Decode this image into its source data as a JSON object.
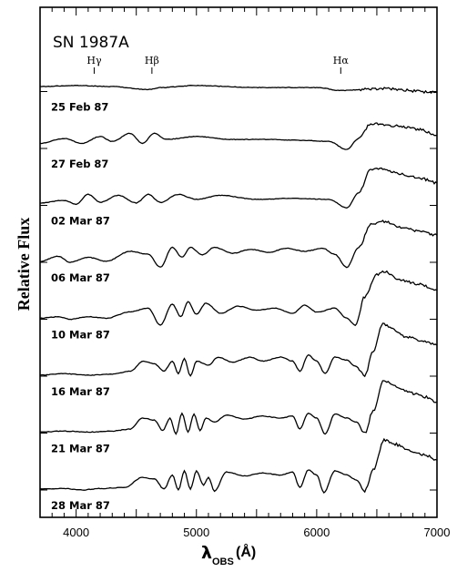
{
  "chart_data": {
    "type": "line",
    "title": "SN 1987A",
    "ylabel": "Relative Flux",
    "xlabel": {
      "symbol": "λ",
      "subscript": "OBS",
      "unit": "(Å)"
    },
    "xlim": [
      3700,
      7000
    ],
    "xticks": [
      4000,
      5000,
      6000,
      7000
    ],
    "xtick_labels": [
      "4000",
      "5000",
      "6000",
      "7000"
    ],
    "line_markers": [
      {
        "label": "Hγ",
        "x": 4150
      },
      {
        "label": "Hβ",
        "x": 4630
      },
      {
        "label": "Hα",
        "x": 6200
      }
    ],
    "series": [
      {
        "name": "25 Feb 87",
        "offset": 7,
        "x_start": 3700,
        "points": [
          [
            3700,
            0.1
          ],
          [
            4000,
            0.12
          ],
          [
            4300,
            0.1
          ],
          [
            4600,
            0.04
          ],
          [
            4700,
            0.08
          ],
          [
            5000,
            0.12
          ],
          [
            5500,
            0.08
          ],
          [
            6000,
            0.08
          ],
          [
            6200,
            0.02
          ],
          [
            6450,
            0.05
          ],
          [
            6550,
            0.06
          ],
          [
            7000,
            -0.02
          ]
        ]
      },
      {
        "name": "27 Feb 87",
        "offset": 6,
        "x_start": 3700,
        "points": [
          [
            3700,
            0.1
          ],
          [
            3900,
            0.2
          ],
          [
            4050,
            0.1
          ],
          [
            4200,
            0.24
          ],
          [
            4300,
            0.14
          ],
          [
            4450,
            0.3
          ],
          [
            4550,
            0.1
          ],
          [
            4650,
            0.3
          ],
          [
            4750,
            0.18
          ],
          [
            5000,
            0.24
          ],
          [
            5300,
            0.18
          ],
          [
            5600,
            0.18
          ],
          [
            5900,
            0.16
          ],
          [
            6100,
            0.14
          ],
          [
            6250,
            -0.02
          ],
          [
            6350,
            0.2
          ],
          [
            6450,
            0.5
          ],
          [
            6550,
            0.48
          ],
          [
            6700,
            0.44
          ],
          [
            6850,
            0.38
          ],
          [
            7000,
            0.26
          ]
        ]
      },
      {
        "name": "02 Mar 87",
        "offset": 5,
        "x_start": 3700,
        "points": [
          [
            3700,
            0.05
          ],
          [
            3900,
            0.1
          ],
          [
            4000,
            0.02
          ],
          [
            4100,
            0.22
          ],
          [
            4200,
            0.06
          ],
          [
            4350,
            0.2
          ],
          [
            4500,
            0.05
          ],
          [
            4600,
            0.22
          ],
          [
            4700,
            0.06
          ],
          [
            4850,
            0.22
          ],
          [
            5000,
            0.12
          ],
          [
            5200,
            0.2
          ],
          [
            5500,
            0.12
          ],
          [
            5800,
            0.14
          ],
          [
            6100,
            0.12
          ],
          [
            6250,
            -0.05
          ],
          [
            6350,
            0.25
          ],
          [
            6450,
            0.72
          ],
          [
            6550,
            0.74
          ],
          [
            6700,
            0.62
          ],
          [
            6850,
            0.55
          ],
          [
            7000,
            0.45
          ]
        ]
      },
      {
        "name": "06 Mar 87",
        "offset": 4,
        "x_start": 3700,
        "points": [
          [
            3700,
            0.02
          ],
          [
            3850,
            0.12
          ],
          [
            3950,
            0.0
          ],
          [
            4100,
            0.1
          ],
          [
            4250,
            0.02
          ],
          [
            4450,
            0.22
          ],
          [
            4600,
            0.16
          ],
          [
            4700,
            -0.1
          ],
          [
            4800,
            0.3
          ],
          [
            4880,
            0.1
          ],
          [
            4950,
            0.3
          ],
          [
            5050,
            0.15
          ],
          [
            5150,
            0.3
          ],
          [
            5300,
            0.18
          ],
          [
            5450,
            0.26
          ],
          [
            5600,
            0.2
          ],
          [
            5750,
            0.28
          ],
          [
            5900,
            0.22
          ],
          [
            6050,
            0.28
          ],
          [
            6150,
            0.16
          ],
          [
            6250,
            -0.1
          ],
          [
            6350,
            0.3
          ],
          [
            6450,
            0.75
          ],
          [
            6550,
            0.82
          ],
          [
            6700,
            0.7
          ],
          [
            6850,
            0.62
          ],
          [
            7000,
            0.54
          ]
        ]
      },
      {
        "name": "10 Mar 87",
        "offset": 3,
        "x_start": 3700,
        "points": [
          [
            3700,
            0.02
          ],
          [
            3850,
            0.05
          ],
          [
            3950,
            0.0
          ],
          [
            4100,
            0.05
          ],
          [
            4250,
            0.02
          ],
          [
            4450,
            0.15
          ],
          [
            4600,
            0.22
          ],
          [
            4700,
            -0.12
          ],
          [
            4800,
            0.3
          ],
          [
            4870,
            0.05
          ],
          [
            4930,
            0.35
          ],
          [
            5000,
            0.1
          ],
          [
            5080,
            0.32
          ],
          [
            5200,
            0.12
          ],
          [
            5350,
            0.26
          ],
          [
            5500,
            0.18
          ],
          [
            5650,
            0.22
          ],
          [
            5800,
            0.12
          ],
          [
            5900,
            0.28
          ],
          [
            6000,
            0.14
          ],
          [
            6150,
            0.22
          ],
          [
            6250,
            0.02
          ],
          [
            6320,
            -0.12
          ],
          [
            6400,
            0.45
          ],
          [
            6500,
            0.9
          ],
          [
            6560,
            0.95
          ],
          [
            6700,
            0.78
          ],
          [
            6850,
            0.7
          ],
          [
            7000,
            0.58
          ]
        ]
      },
      {
        "name": "16 Mar 87",
        "offset": 2,
        "x_start": 3700,
        "points": [
          [
            3700,
            0.02
          ],
          [
            3900,
            0.05
          ],
          [
            4100,
            0.02
          ],
          [
            4300,
            0.04
          ],
          [
            4450,
            0.1
          ],
          [
            4560,
            0.3
          ],
          [
            4650,
            0.25
          ],
          [
            4730,
            0.1
          ],
          [
            4800,
            0.3
          ],
          [
            4850,
            0.05
          ],
          [
            4900,
            0.35
          ],
          [
            4950,
            0.0
          ],
          [
            5000,
            0.3
          ],
          [
            5100,
            0.22
          ],
          [
            5180,
            0.38
          ],
          [
            5300,
            0.28
          ],
          [
            5450,
            0.38
          ],
          [
            5550,
            0.3
          ],
          [
            5700,
            0.38
          ],
          [
            5800,
            0.3
          ],
          [
            5860,
            0.1
          ],
          [
            5930,
            0.42
          ],
          [
            6000,
            0.3
          ],
          [
            6070,
            0.05
          ],
          [
            6150,
            0.38
          ],
          [
            6250,
            0.32
          ],
          [
            6320,
            0.2
          ],
          [
            6400,
            0.02
          ],
          [
            6470,
            0.5
          ],
          [
            6550,
            1.05
          ],
          [
            6620,
            0.95
          ],
          [
            6750,
            0.78
          ],
          [
            6900,
            0.7
          ],
          [
            7000,
            0.62
          ]
        ]
      },
      {
        "name": "21 Mar 87",
        "offset": 1,
        "x_start": 3700,
        "points": [
          [
            3700,
            0.02
          ],
          [
            3900,
            0.04
          ],
          [
            4100,
            0.02
          ],
          [
            4300,
            0.04
          ],
          [
            4450,
            0.08
          ],
          [
            4550,
            0.3
          ],
          [
            4650,
            0.26
          ],
          [
            4720,
            0.05
          ],
          [
            4780,
            0.3
          ],
          [
            4830,
            -0.02
          ],
          [
            4880,
            0.4
          ],
          [
            4930,
            0.02
          ],
          [
            4980,
            0.38
          ],
          [
            5030,
            0.05
          ],
          [
            5080,
            0.3
          ],
          [
            5150,
            0.22
          ],
          [
            5250,
            0.36
          ],
          [
            5400,
            0.28
          ],
          [
            5550,
            0.34
          ],
          [
            5700,
            0.3
          ],
          [
            5800,
            0.34
          ],
          [
            5860,
            0.08
          ],
          [
            5930,
            0.4
          ],
          [
            6000,
            0.3
          ],
          [
            6070,
            -0.02
          ],
          [
            6150,
            0.38
          ],
          [
            6250,
            0.3
          ],
          [
            6330,
            0.22
          ],
          [
            6400,
            0.0
          ],
          [
            6470,
            0.45
          ],
          [
            6560,
            1.05
          ],
          [
            6640,
            0.95
          ],
          [
            6780,
            0.8
          ],
          [
            6900,
            0.72
          ],
          [
            7000,
            0.62
          ]
        ]
      },
      {
        "name": "28 Mar 87",
        "offset": 0,
        "x_start": 3700,
        "points": [
          [
            3700,
            0.02
          ],
          [
            3900,
            0.03
          ],
          [
            4050,
            0.0
          ],
          [
            4200,
            0.03
          ],
          [
            4400,
            0.05
          ],
          [
            4550,
            0.25
          ],
          [
            4650,
            0.22
          ],
          [
            4730,
            0.02
          ],
          [
            4800,
            0.3
          ],
          [
            4850,
            0.0
          ],
          [
            4900,
            0.38
          ],
          [
            4950,
            0.02
          ],
          [
            5000,
            0.38
          ],
          [
            5060,
            0.1
          ],
          [
            5100,
            0.25
          ],
          [
            5150,
            -0.02
          ],
          [
            5250,
            0.36
          ],
          [
            5400,
            0.28
          ],
          [
            5550,
            0.34
          ],
          [
            5700,
            0.3
          ],
          [
            5800,
            0.36
          ],
          [
            5860,
            0.05
          ],
          [
            5930,
            0.4
          ],
          [
            6000,
            0.3
          ],
          [
            6060,
            -0.05
          ],
          [
            6150,
            0.38
          ],
          [
            6250,
            0.3
          ],
          [
            6330,
            0.2
          ],
          [
            6400,
            -0.02
          ],
          [
            6470,
            0.4
          ],
          [
            6560,
            1.0
          ],
          [
            6640,
            0.92
          ],
          [
            6780,
            0.78
          ],
          [
            6900,
            0.7
          ],
          [
            7000,
            0.6
          ]
        ]
      }
    ]
  }
}
